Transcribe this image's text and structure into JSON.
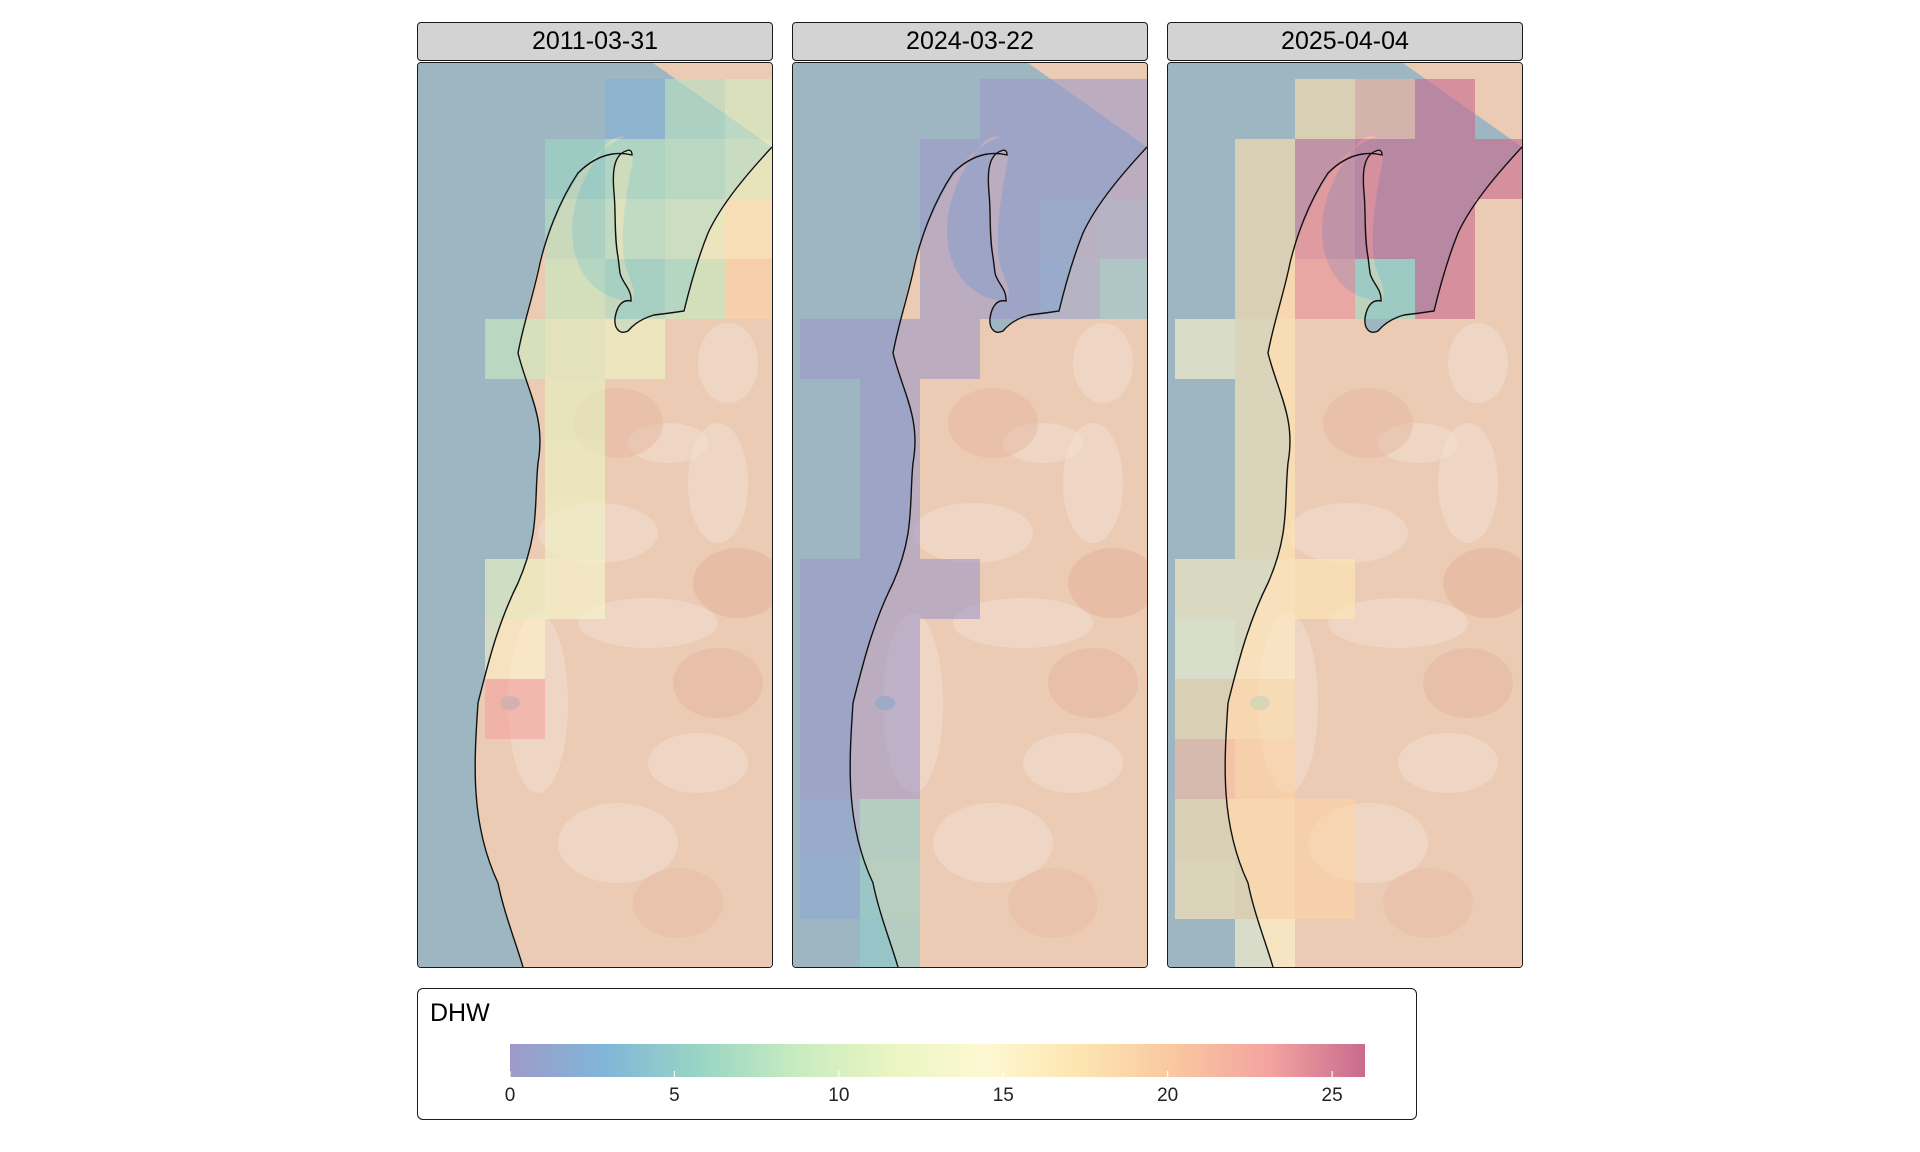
{
  "panels": [
    {
      "label": "2011-03-31",
      "cells": [
        [
          0,
          3,
          2.5
        ],
        [
          0,
          4,
          7.5
        ],
        [
          0,
          5,
          9.5
        ],
        [
          1,
          2,
          6
        ],
        [
          1,
          3,
          8
        ],
        [
          1,
          4,
          9
        ],
        [
          1,
          5,
          11
        ],
        [
          1,
          6,
          12
        ],
        [
          2,
          2,
          7.5
        ],
        [
          2,
          3,
          10
        ],
        [
          2,
          4,
          11.5
        ],
        [
          2,
          5,
          16.5
        ],
        [
          3,
          2,
          8.5
        ],
        [
          3,
          3,
          7
        ],
        [
          3,
          4,
          8.5
        ],
        [
          3,
          5,
          19
        ],
        [
          4,
          1,
          9
        ],
        [
          4,
          2,
          10.5
        ],
        [
          4,
          3,
          12
        ],
        [
          5,
          2,
          11
        ],
        [
          6,
          2,
          11.5
        ],
        [
          7,
          2,
          12
        ],
        [
          8,
          1,
          12
        ],
        [
          8,
          2,
          13.5
        ],
        [
          9,
          1,
          15.5
        ],
        [
          10,
          1,
          23
        ]
      ]
    },
    {
      "label": "2024-03-22",
      "cells": [
        [
          0,
          3,
          0
        ],
        [
          0,
          4,
          0
        ],
        [
          0,
          5,
          0
        ],
        [
          1,
          2,
          0
        ],
        [
          1,
          3,
          0
        ],
        [
          1,
          4,
          0
        ],
        [
          1,
          5,
          0
        ],
        [
          1,
          6,
          0
        ],
        [
          2,
          2,
          0
        ],
        [
          2,
          3,
          0
        ],
        [
          2,
          4,
          0.5
        ],
        [
          2,
          5,
          1
        ],
        [
          3,
          2,
          0
        ],
        [
          3,
          3,
          0
        ],
        [
          3,
          4,
          1
        ],
        [
          3,
          5,
          4
        ],
        [
          4,
          0,
          0
        ],
        [
          4,
          1,
          0
        ],
        [
          4,
          2,
          0
        ],
        [
          5,
          1,
          0
        ],
        [
          6,
          1,
          0
        ],
        [
          7,
          1,
          0
        ],
        [
          8,
          0,
          0
        ],
        [
          8,
          1,
          0
        ],
        [
          8,
          2,
          0
        ],
        [
          9,
          0,
          0
        ],
        [
          9,
          1,
          0
        ],
        [
          10,
          0,
          0
        ],
        [
          10,
          1,
          0
        ],
        [
          11,
          0,
          0
        ],
        [
          11,
          1,
          0
        ],
        [
          12,
          0,
          1
        ],
        [
          12,
          1,
          5
        ],
        [
          13,
          0,
          1.5
        ],
        [
          13,
          1,
          5.5
        ],
        [
          14,
          1,
          5
        ]
      ]
    },
    {
      "label": "2025-04-04",
      "cells": [
        [
          0,
          2,
          18
        ],
        [
          0,
          3,
          22
        ],
        [
          0,
          4,
          26
        ],
        [
          1,
          1,
          18
        ],
        [
          1,
          2,
          25
        ],
        [
          1,
          3,
          26
        ],
        [
          1,
          4,
          26
        ],
        [
          1,
          5,
          26
        ],
        [
          2,
          1,
          18
        ],
        [
          2,
          2,
          25
        ],
        [
          2,
          3,
          26
        ],
        [
          2,
          4,
          26
        ],
        [
          3,
          1,
          18
        ],
        [
          3,
          2,
          24
        ],
        [
          3,
          3,
          6
        ],
        [
          3,
          4,
          26
        ],
        [
          4,
          0,
          15
        ],
        [
          4,
          1,
          17
        ],
        [
          5,
          1,
          17
        ],
        [
          6,
          1,
          17
        ],
        [
          7,
          1,
          17
        ],
        [
          8,
          0,
          16
        ],
        [
          8,
          1,
          16
        ],
        [
          8,
          2,
          17
        ],
        [
          9,
          0,
          14
        ],
        [
          9,
          1,
          16
        ],
        [
          10,
          0,
          18
        ],
        [
          10,
          1,
          18
        ],
        [
          11,
          0,
          21
        ],
        [
          11,
          1,
          19
        ],
        [
          12,
          0,
          18
        ],
        [
          12,
          1,
          18
        ],
        [
          12,
          2,
          19
        ],
        [
          13,
          0,
          17
        ],
        [
          13,
          1,
          18
        ],
        [
          13,
          2,
          19
        ],
        [
          14,
          1,
          15
        ]
      ]
    }
  ],
  "legend": {
    "title": "DHW",
    "ticks": [
      0,
      5,
      10,
      15,
      20,
      25
    ],
    "min": 0,
    "max": 26,
    "colors": [
      "#9e9ac8",
      "#80b6d8",
      "#99d5c4",
      "#c7ebc0",
      "#eaf5c2",
      "#fdf8d2",
      "#fde5b0",
      "#f9c7a0",
      "#f3a3a0",
      "#c86b8e"
    ]
  },
  "colors": {
    "ocean": "#9db6c2",
    "land": "#eccbb4",
    "coastline": "#111111"
  }
}
